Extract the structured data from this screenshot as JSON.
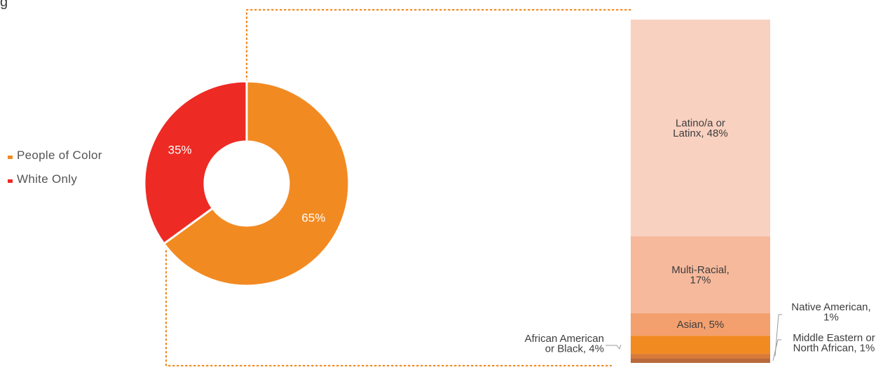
{
  "header": {
    "partial_title": "g"
  },
  "chart_data": [
    {
      "type": "pie",
      "variant": "donut",
      "legend": {
        "placement": "left",
        "entries": [
          "People of Color",
          "White Only"
        ]
      },
      "slices": [
        {
          "name": "People of Color",
          "value": 65,
          "label": "65%",
          "color": "#f28a22"
        },
        {
          "name": "White Only",
          "value": 35,
          "label": "35%",
          "color": "#ee2a24"
        }
      ]
    },
    {
      "type": "bar",
      "variant": "stacked-100",
      "categories": [
        "Latino/a or Latinx",
        "Multi-Racial",
        "Asian",
        "African American or Black",
        "Native American",
        "Middle Eastern or North African"
      ],
      "values": [
        48,
        17,
        5,
        4,
        1,
        1
      ],
      "colors": [
        "#f9d1c1",
        "#f6b99c",
        "#f3a06e",
        "#f28a22",
        "#d97a36",
        "#b96a3c"
      ],
      "labels": [
        {
          "lines": [
            "Latino/a or",
            "Latinx, 48%"
          ]
        },
        {
          "lines": [
            "Multi-Racial,",
            "17%"
          ]
        },
        {
          "lines": [
            "Asian, 5%"
          ]
        },
        {
          "lines": [
            "African American",
            "or Black, 4%"
          ]
        },
        {
          "lines": [
            "Native American,",
            "1%"
          ]
        },
        {
          "lines": [
            "Middle Eastern or",
            "North African, 1%"
          ]
        }
      ]
    }
  ]
}
